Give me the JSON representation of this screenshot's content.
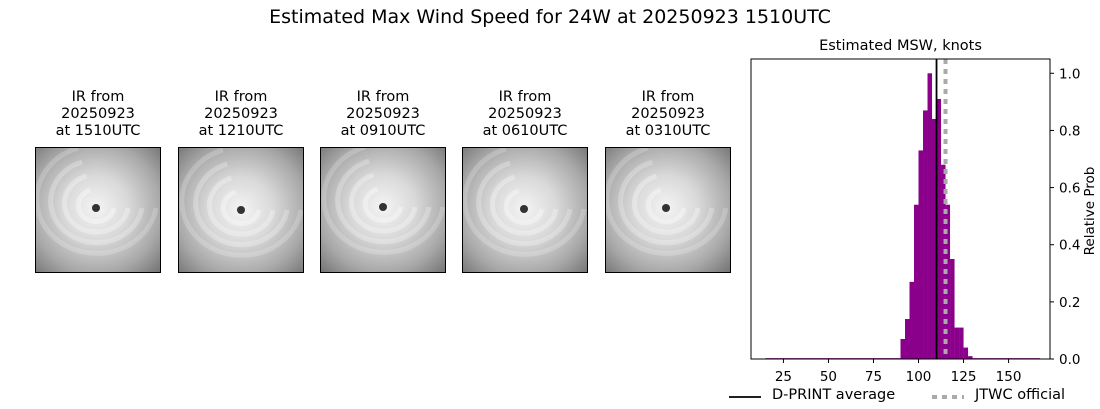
{
  "figure": {
    "suptitle": "Estimated Max Wind Speed for 24W at 20250923 1510UTC"
  },
  "ir_panels": [
    {
      "title": "IR from\n20250923\nat 1510UTC"
    },
    {
      "title": "IR from\n20250923\nat 1210UTC"
    },
    {
      "title": "IR from\n20250923\nat 0910UTC"
    },
    {
      "title": "IR from\n20250923\nat 0610UTC"
    },
    {
      "title": "IR from\n20250923\nat 0310UTC"
    }
  ],
  "chart_data": {
    "type": "bar",
    "title": "Estimated MSW, knots",
    "xlabel": "",
    "ylabel": "Relative Prob",
    "xlim": [
      7,
      173
    ],
    "ylim": [
      0,
      1.05
    ],
    "xticks": [
      25,
      50,
      75,
      100,
      125,
      150
    ],
    "yticks": [
      0.0,
      0.2,
      0.4,
      0.6,
      0.8,
      1.0
    ],
    "y_axis_side": "right",
    "grid": false,
    "bar_color": "#8b008b",
    "bin_width": 2.5,
    "bins": [
      {
        "x": 15,
        "y": 0.003
      },
      {
        "x": 17.5,
        "y": 0.003
      },
      {
        "x": 20,
        "y": 0.003
      },
      {
        "x": 22.5,
        "y": 0.003
      },
      {
        "x": 25,
        "y": 0.003
      },
      {
        "x": 27.5,
        "y": 0.003
      },
      {
        "x": 30,
        "y": 0.003
      },
      {
        "x": 32.5,
        "y": 0.003
      },
      {
        "x": 35,
        "y": 0.003
      },
      {
        "x": 37.5,
        "y": 0.003
      },
      {
        "x": 40,
        "y": 0.003
      },
      {
        "x": 42.5,
        "y": 0.003
      },
      {
        "x": 45,
        "y": 0.003
      },
      {
        "x": 47.5,
        "y": 0.003
      },
      {
        "x": 50,
        "y": 0.003
      },
      {
        "x": 52.5,
        "y": 0.003
      },
      {
        "x": 55,
        "y": 0.003
      },
      {
        "x": 57.5,
        "y": 0.003
      },
      {
        "x": 60,
        "y": 0.003
      },
      {
        "x": 62.5,
        "y": 0.003
      },
      {
        "x": 65,
        "y": 0.003
      },
      {
        "x": 67.5,
        "y": 0.003
      },
      {
        "x": 70,
        "y": 0.003
      },
      {
        "x": 72.5,
        "y": 0.003
      },
      {
        "x": 75,
        "y": 0.003
      },
      {
        "x": 77.5,
        "y": 0.003
      },
      {
        "x": 80,
        "y": 0.003
      },
      {
        "x": 82.5,
        "y": 0.003
      },
      {
        "x": 85,
        "y": 0.003
      },
      {
        "x": 87.5,
        "y": 0.003
      },
      {
        "x": 90,
        "y": 0.07
      },
      {
        "x": 92.5,
        "y": 0.14
      },
      {
        "x": 95,
        "y": 0.27
      },
      {
        "x": 97.5,
        "y": 0.54
      },
      {
        "x": 100,
        "y": 0.73
      },
      {
        "x": 102.5,
        "y": 0.87
      },
      {
        "x": 105,
        "y": 1.0
      },
      {
        "x": 107.5,
        "y": 0.84
      },
      {
        "x": 110,
        "y": 0.91
      },
      {
        "x": 112.5,
        "y": 0.68
      },
      {
        "x": 115,
        "y": 0.54
      },
      {
        "x": 117.5,
        "y": 0.35
      },
      {
        "x": 120,
        "y": 0.11
      },
      {
        "x": 122.5,
        "y": 0.11
      },
      {
        "x": 125,
        "y": 0.04
      },
      {
        "x": 127.5,
        "y": 0.01
      },
      {
        "x": 130,
        "y": 0.003
      },
      {
        "x": 132.5,
        "y": 0.003
      },
      {
        "x": 135,
        "y": 0.003
      },
      {
        "x": 137.5,
        "y": 0.003
      },
      {
        "x": 140,
        "y": 0.003
      },
      {
        "x": 142.5,
        "y": 0.003
      },
      {
        "x": 145,
        "y": 0.003
      },
      {
        "x": 147.5,
        "y": 0.003
      },
      {
        "x": 150,
        "y": 0.003
      },
      {
        "x": 152.5,
        "y": 0.003
      },
      {
        "x": 155,
        "y": 0.003
      },
      {
        "x": 157.5,
        "y": 0.003
      },
      {
        "x": 160,
        "y": 0.003
      },
      {
        "x": 162.5,
        "y": 0.003
      },
      {
        "x": 165,
        "y": 0.003
      }
    ],
    "reference_lines": [
      {
        "name": "D-PRINT average",
        "x": 110,
        "color": "#000000",
        "style": "solid"
      },
      {
        "name": "JTWC official",
        "x": 115,
        "color": "#aaaaaa",
        "style": "dotted"
      }
    ],
    "legend": {
      "placement": "bottom",
      "entries": [
        "D-PRINT average",
        "JTWC official"
      ]
    }
  }
}
